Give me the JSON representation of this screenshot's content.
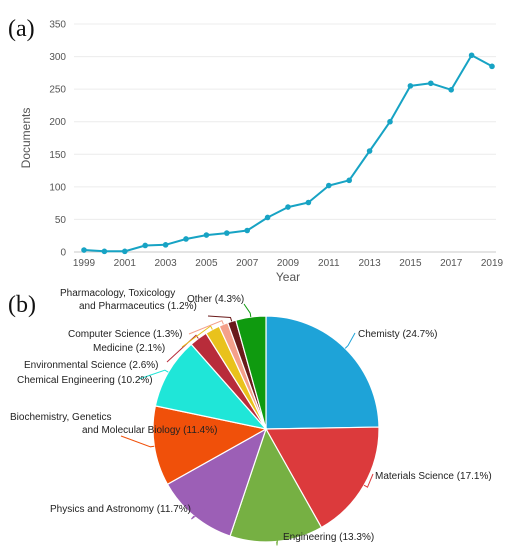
{
  "chart_data": [
    {
      "panel": "(a)",
      "type": "line",
      "xlabel": "Year",
      "ylabel": "Documents",
      "xlim": [
        1999,
        2019
      ],
      "ylim": [
        0,
        350
      ],
      "yticks": [
        0,
        50,
        100,
        150,
        200,
        250,
        300,
        350
      ],
      "xticks": [
        1999,
        2001,
        2003,
        2005,
        2007,
        2009,
        2011,
        2013,
        2015,
        2017,
        2019
      ],
      "grid": "horizontal",
      "color": "#17a3c4",
      "x": [
        1999,
        2000,
        2001,
        2002,
        2003,
        2004,
        2005,
        2006,
        2007,
        2008,
        2009,
        2010,
        2011,
        2012,
        2013,
        2014,
        2015,
        2016,
        2017,
        2018,
        2019
      ],
      "y": [
        3,
        1,
        1,
        10,
        11,
        20,
        26,
        29,
        33,
        53,
        69,
        76,
        102,
        110,
        155,
        200,
        255,
        259,
        249,
        302,
        285
      ]
    },
    {
      "panel": "(b)",
      "type": "pie",
      "slices": [
        {
          "lines": [
            "Chemisty (24.7%)"
          ],
          "value": 24.7,
          "color": "#1ea3d8"
        },
        {
          "lines": [
            "Materials Science (17.1%)"
          ],
          "value": 17.1,
          "color": "#dc3a3c"
        },
        {
          "lines": [
            "Engineering (13.3%)"
          ],
          "value": 13.3,
          "color": "#76b043"
        },
        {
          "lines": [
            "Physics and Astronomy (11.7%)"
          ],
          "value": 11.7,
          "color": "#9c5fb6"
        },
        {
          "lines": [
            "Biochemistry, Genetics",
            "and Molecular Biology (11.4%)"
          ],
          "value": 11.4,
          "color": "#f0500a"
        },
        {
          "lines": [
            "Chemical Engineering (10.2%)"
          ],
          "value": 10.2,
          "color": "#1fe6d8"
        },
        {
          "lines": [
            "Environmental Science (2.6%)"
          ],
          "value": 2.6,
          "color": "#b82c3a"
        },
        {
          "lines": [
            "Medicine (2.1%)"
          ],
          "value": 2.1,
          "color": "#e9c21c"
        },
        {
          "lines": [
            "Computer Science (1.3%)"
          ],
          "value": 1.3,
          "color": "#f4a08a"
        },
        {
          "lines": [
            "Pharmacology, Toxicology",
            "and Pharmaceutics  (1.2%)"
          ],
          "value": 1.2,
          "color": "#6a1a1a"
        },
        {
          "lines": [
            "Other (4.3%)"
          ],
          "value": 4.3,
          "color": "#0f9a0f"
        }
      ]
    }
  ]
}
